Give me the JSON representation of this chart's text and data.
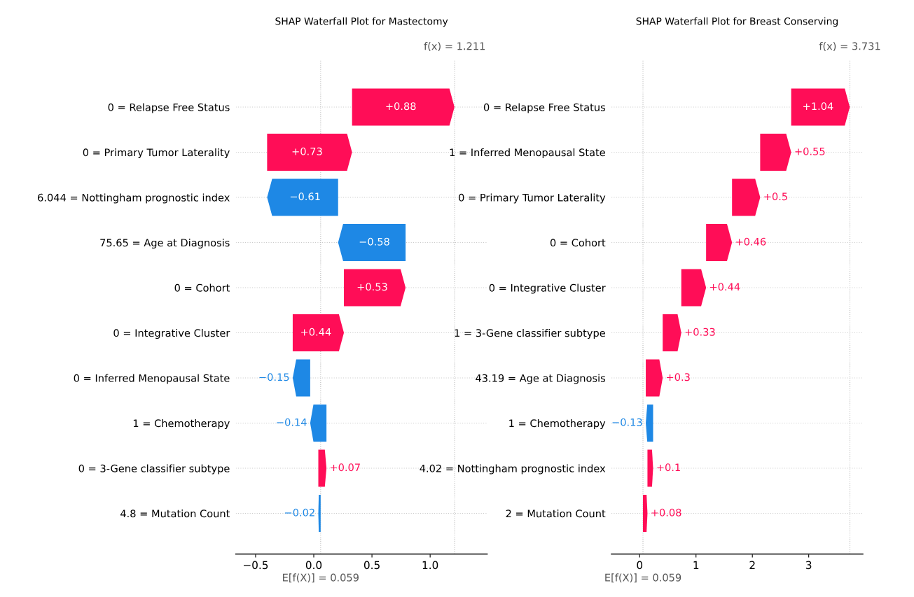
{
  "chart_data": [
    {
      "type": "bar",
      "orientation": "horizontal",
      "title": "SHAP Waterfall Plot for Mastectomy",
      "categories": [
        "0 = Relapse Free Status",
        "0 = Primary Tumor Laterality",
        "6.044 = Nottingham prognostic index",
        "75.65 = Age at Diagnosis",
        "0 = Cohort",
        "0 = Integrative Cluster",
        "0 = Inferred Menopausal State",
        "1 = Chemotherapy",
        "0 = 3-Gene classifier subtype",
        "4.8 = Mutation Count"
      ],
      "values": [
        0.88,
        0.73,
        -0.61,
        -0.58,
        0.53,
        0.44,
        -0.15,
        -0.14,
        0.07,
        -0.02
      ],
      "base": [
        0.329,
        -0.401,
        0.209,
        0.789,
        0.259,
        -0.181,
        -0.031,
        0.109,
        0.039,
        0.059
      ],
      "colors": [
        "#ff0d57",
        "#ff0d57",
        "#1e88e5",
        "#1e88e5",
        "#ff0d57",
        "#ff0d57",
        "#1e88e5",
        "#1e88e5",
        "#ff0d57",
        "#1e88e5"
      ],
      "value_labels": [
        "+0.88",
        "+0.73",
        "−0.61",
        "−0.58",
        "+0.53",
        "+0.44",
        "−0.15",
        "−0.14",
        "+0.07",
        "−0.02"
      ],
      "xlim": [
        -0.67,
        1.49
      ],
      "xticks": [
        {
          "value": -0.5,
          "label": "−0.5"
        },
        {
          "value": 0.0,
          "label": "0.0"
        },
        0.5,
        {
          "value": 1.0,
          "label": "1.0"
        }
      ],
      "ref_lines": [
        {
          "axis": "x",
          "value": 1.211,
          "label": "f(x) = 1.211",
          "color": "#bbbbbb",
          "line_style": "dotted"
        },
        {
          "axis": "x",
          "value": 0.059,
          "label": "E[f(X)] = 0.059",
          "color": "#bbbbbb",
          "line_style": "dotted"
        }
      ],
      "grid": "y"
    },
    {
      "type": "bar",
      "orientation": "horizontal",
      "title": "SHAP Waterfall Plot for Breast Conserving",
      "categories": [
        "0 = Relapse Free Status",
        "1 = Inferred Menopausal State",
        "0 = Primary Tumor Laterality",
        "0 = Cohort",
        "0 = Integrative Cluster",
        "1 = 3-Gene classifier subtype",
        "43.19 = Age at Diagnosis",
        "1 = Chemotherapy",
        "4.02 = Nottingham prognostic index",
        "2 = Mutation Count"
      ],
      "values": [
        1.04,
        0.55,
        0.5,
        0.46,
        0.44,
        0.33,
        0.3,
        -0.13,
        0.1,
        0.08
      ],
      "base": [
        2.689,
        2.139,
        1.639,
        1.179,
        0.739,
        0.409,
        0.109,
        0.239,
        0.139,
        0.059
      ],
      "colors": [
        "#ff0d57",
        "#ff0d57",
        "#ff0d57",
        "#ff0d57",
        "#ff0d57",
        "#ff0d57",
        "#ff0d57",
        "#1e88e5",
        "#ff0d57",
        "#ff0d57"
      ],
      "value_labels": [
        "+1.04",
        "+0.55",
        "+0.5",
        "+0.46",
        "+0.44",
        "+0.33",
        "+0.3",
        "−0.13",
        "+0.1",
        "+0.08"
      ],
      "xlim": [
        -0.5,
        3.96
      ],
      "xticks": [
        0,
        1,
        2,
        3
      ],
      "ref_lines": [
        {
          "axis": "x",
          "value": 3.731,
          "label": "f(x) = 3.731",
          "color": "#bbbbbb",
          "line_style": "dotted"
        },
        {
          "axis": "x",
          "value": 0.059,
          "label": "E[f(X)] = 0.059",
          "color": "#bbbbbb",
          "line_style": "dotted"
        }
      ],
      "grid": "y"
    }
  ]
}
